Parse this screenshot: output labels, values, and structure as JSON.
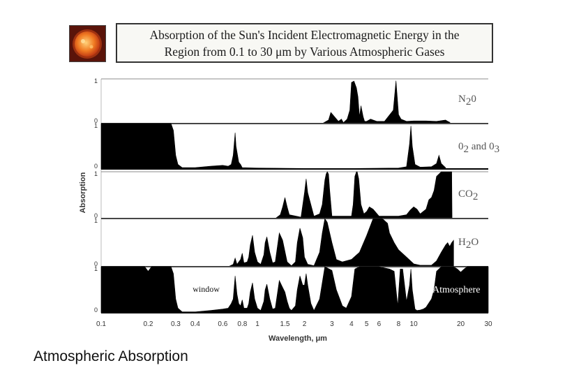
{
  "header": {
    "title_line1": "Absorption of the Sun's Incident Electromagnetic Energy in the",
    "title_line2": "Region from 0.1 to 30 μm by Various Atmospheric Gases"
  },
  "icon": "sun-photo",
  "caption": "Atmospheric Absorption",
  "colors": {
    "fill": "#000000",
    "line": "#8c8c8c",
    "text": "#333333",
    "sun": "#e85a1c"
  },
  "chart_data": {
    "type": "area",
    "title": "Absorption of the Sun's Incident Electromagnetic Energy in the Region from 0.1 to 30 μm by Various Atmospheric Gases",
    "xlabel": "Wavelength, μm",
    "ylabel": "Absorption",
    "xscale": "log",
    "xlim": [
      0.1,
      30
    ],
    "ylim": [
      0,
      1
    ],
    "x_ticks": [
      "0.1",
      "0.2",
      "0.3",
      "0.4",
      "0.6",
      "0.8",
      "1",
      "1.5",
      "2",
      "3",
      "4",
      "5",
      "6",
      "8",
      "10",
      "20",
      "30"
    ],
    "x_tick_values": [
      0.1,
      0.2,
      0.3,
      0.4,
      0.6,
      0.8,
      1,
      1.5,
      2,
      3,
      4,
      5,
      6,
      8,
      10,
      20,
      30
    ],
    "y_ticks": [
      "0",
      "1"
    ],
    "annotations": [
      {
        "text": "window",
        "x": 0.5,
        "series": "Atmosphere"
      }
    ],
    "series": [
      {
        "name": "N2O",
        "label_main": "N",
        "label_sub": "2",
        "label_tail": "0",
        "x": [
          2.6,
          2.85,
          2.95,
          3.3,
          3.45,
          3.55,
          3.75,
          3.9,
          4.0,
          4.15,
          4.3,
          4.4,
          4.5,
          4.6,
          4.75,
          4.85,
          5.0,
          5.3,
          5.8,
          6.5,
          7.4,
          7.7,
          7.85,
          8.0,
          8.3,
          9.0,
          10.0,
          12.0,
          14.0,
          16.0,
          16.5,
          17.0,
          17.2
        ],
        "y": [
          0.0,
          0.08,
          0.25,
          0.05,
          0.1,
          0.02,
          0.1,
          0.3,
          0.92,
          0.95,
          0.8,
          0.6,
          0.15,
          0.4,
          0.15,
          0.05,
          0.05,
          0.1,
          0.05,
          0.05,
          0.3,
          0.96,
          0.6,
          0.2,
          0.1,
          0.05,
          0.06,
          0.06,
          0.05,
          0.08,
          0.05,
          0.03,
          0.0
        ]
      },
      {
        "name": "O2 and O3",
        "label_main": "0",
        "label_sub": "2",
        "label_tail": " and 0",
        "label_sub2": "3",
        "x": [
          0.1,
          0.28,
          0.29,
          0.3,
          0.31,
          0.33,
          0.4,
          0.5,
          0.6,
          0.65,
          0.68,
          0.7,
          0.72,
          0.73,
          0.76,
          0.78,
          0.8,
          1.0,
          2.0,
          4.0,
          8.0,
          9.0,
          9.4,
          9.6,
          9.8,
          10.2,
          11.0,
          13.0,
          14.0,
          14.5,
          15.0,
          16.0
        ],
        "y": [
          1.0,
          1.0,
          0.85,
          0.3,
          0.1,
          0.03,
          0.03,
          0.06,
          0.08,
          0.06,
          0.1,
          0.3,
          0.8,
          0.5,
          0.15,
          0.1,
          0.03,
          0.02,
          0.01,
          0.01,
          0.02,
          0.05,
          0.55,
          0.95,
          0.5,
          0.1,
          0.04,
          0.05,
          0.12,
          0.3,
          0.12,
          0.03
        ]
      },
      {
        "name": "CO2",
        "label_main": "CO",
        "label_sub": "2",
        "label_tail": "",
        "x": [
          1.1,
          1.3,
          1.4,
          1.45,
          1.5,
          1.55,
          1.6,
          1.9,
          2.0,
          2.05,
          2.1,
          2.3,
          2.5,
          2.6,
          2.7,
          2.75,
          2.8,
          2.85,
          2.9,
          3.0,
          4.0,
          4.1,
          4.2,
          4.3,
          4.35,
          4.45,
          4.6,
          4.8,
          5.0,
          5.2,
          5.5,
          6.0,
          7.0,
          8.0,
          9.0,
          9.5,
          10.0,
          10.5,
          11.0,
          12.0,
          12.5,
          13.0,
          13.5,
          14.0,
          15.0,
          16.0,
          16.5,
          17.0,
          17.5,
          17.6
        ],
        "y": [
          0.0,
          0.0,
          0.08,
          0.25,
          0.45,
          0.25,
          0.08,
          0.03,
          0.55,
          0.85,
          0.55,
          0.05,
          0.1,
          0.3,
          0.82,
          0.95,
          1.0,
          0.95,
          0.6,
          0.05,
          0.05,
          0.3,
          0.9,
          1.0,
          1.0,
          0.85,
          0.3,
          0.1,
          0.15,
          0.25,
          0.2,
          0.05,
          0.05,
          0.05,
          0.08,
          0.18,
          0.25,
          0.2,
          0.1,
          0.2,
          0.4,
          0.45,
          0.6,
          0.9,
          1.0,
          1.0,
          1.0,
          1.0,
          1.0,
          0.0
        ]
      },
      {
        "name": "H2O",
        "label_main": "H",
        "label_sub": "2",
        "label_tail": "O",
        "x": [
          0.6,
          0.65,
          0.7,
          0.72,
          0.74,
          0.78,
          0.8,
          0.82,
          0.86,
          0.88,
          0.9,
          0.93,
          0.96,
          1.0,
          1.05,
          1.1,
          1.12,
          1.15,
          1.2,
          1.25,
          1.3,
          1.38,
          1.45,
          1.55,
          1.65,
          1.75,
          1.8,
          1.87,
          1.95,
          2.0,
          2.1,
          2.3,
          2.5,
          2.6,
          2.7,
          2.8,
          3.0,
          3.2,
          3.5,
          4.0,
          4.5,
          5.0,
          5.5,
          6.0,
          6.3,
          6.8,
          7.0,
          7.5,
          8.0,
          9.0,
          10.0,
          11.0,
          12.0,
          13.0,
          14.0,
          15.0,
          16.0,
          16.5,
          17.0,
          17.5,
          18.0
        ],
        "y": [
          0.0,
          0.0,
          0.05,
          0.18,
          0.05,
          0.15,
          0.28,
          0.08,
          0.1,
          0.2,
          0.45,
          0.65,
          0.3,
          0.1,
          0.05,
          0.25,
          0.5,
          0.62,
          0.3,
          0.08,
          0.1,
          0.7,
          0.55,
          0.1,
          0.02,
          0.1,
          0.5,
          0.8,
          0.6,
          0.2,
          0.05,
          0.02,
          0.3,
          0.7,
          1.0,
          0.92,
          0.5,
          0.15,
          0.1,
          0.15,
          0.3,
          0.65,
          1.0,
          1.0,
          1.0,
          0.9,
          0.7,
          0.5,
          0.35,
          0.2,
          0.06,
          0.03,
          0.03,
          0.03,
          0.12,
          0.3,
          0.45,
          0.5,
          0.42,
          0.5,
          0.55
        ]
      },
      {
        "name": "Atmosphere",
        "label_main": "Atmosphere",
        "label_sub": "",
        "label_tail": "",
        "x": [
          0.1,
          0.19,
          0.2,
          0.21,
          0.28,
          0.29,
          0.3,
          0.31,
          0.33,
          0.4,
          0.5,
          0.6,
          0.65,
          0.68,
          0.7,
          0.72,
          0.74,
          0.76,
          0.78,
          0.8,
          0.82,
          0.86,
          0.88,
          0.9,
          0.93,
          0.96,
          1.0,
          1.05,
          1.1,
          1.12,
          1.15,
          1.2,
          1.25,
          1.3,
          1.38,
          1.45,
          1.5,
          1.55,
          1.6,
          1.65,
          1.75,
          1.8,
          1.87,
          1.95,
          2.0,
          2.05,
          2.1,
          2.2,
          2.3,
          2.5,
          2.7,
          3.0,
          3.2,
          3.5,
          3.7,
          4.0,
          4.2,
          4.5,
          5.0,
          5.5,
          6.0,
          7.0,
          7.5,
          7.9,
          8.2,
          8.5,
          9.0,
          9.4,
          9.6,
          9.8,
          10.2,
          10.5,
          11.0,
          11.5,
          12.0,
          13.0,
          13.5,
          14.0,
          15.0,
          18.0,
          19.0,
          20.0,
          21.0,
          22.0,
          30.0
        ],
        "y": [
          1.0,
          1.0,
          0.9,
          1.0,
          1.0,
          0.85,
          0.3,
          0.1,
          0.02,
          0.02,
          0.05,
          0.08,
          0.1,
          0.2,
          0.3,
          0.8,
          0.4,
          0.2,
          0.15,
          0.28,
          0.1,
          0.1,
          0.2,
          0.45,
          0.65,
          0.3,
          0.1,
          0.05,
          0.25,
          0.5,
          0.62,
          0.3,
          0.08,
          0.1,
          0.7,
          0.55,
          0.45,
          0.25,
          0.1,
          0.05,
          0.15,
          0.5,
          0.8,
          0.6,
          0.6,
          0.85,
          0.6,
          0.2,
          0.05,
          0.3,
          1.0,
          0.92,
          0.5,
          0.15,
          0.1,
          0.35,
          0.95,
          1.0,
          1.0,
          1.0,
          1.0,
          0.95,
          0.9,
          0.15,
          0.95,
          0.95,
          0.25,
          0.6,
          0.95,
          0.5,
          0.08,
          0.05,
          0.06,
          0.08,
          0.12,
          0.3,
          0.5,
          0.9,
          1.0,
          1.0,
          0.95,
          0.88,
          0.95,
          1.0,
          1.0
        ]
      }
    ]
  }
}
